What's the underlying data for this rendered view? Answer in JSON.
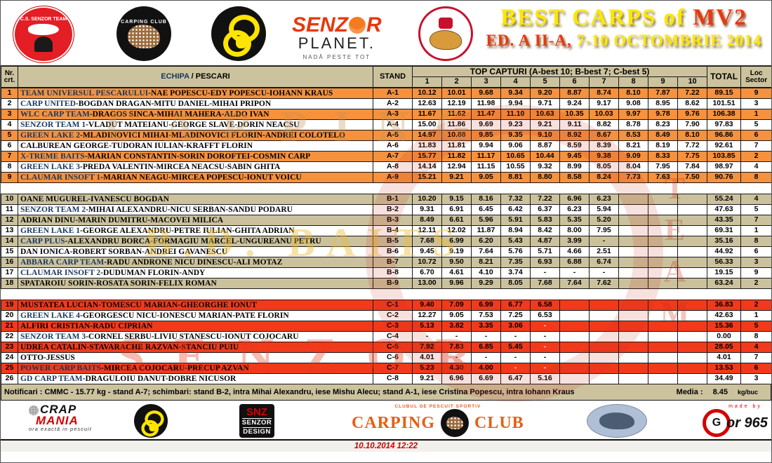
{
  "colors": {
    "orange_row": "#f6913e",
    "tan_row": "#cbc29d",
    "red_row": "#f23a1b",
    "header_bg": "#ccc39e",
    "team_navy": "#17375d",
    "title_yellow": "#ffe600",
    "title_red": "#e8380d"
  },
  "banner": {
    "title_main": "BEST CARPS of ",
    "title_accent": "MV2",
    "subtitle_accent": "ED. A II-A, ",
    "subtitle_main": "7-10 OCTOMBRIE 2014",
    "logos": {
      "senzor_team": "C.S. SENZOR TEAM",
      "carping_club": "CARPING CLUB",
      "senzor_planet_senz": "SENZ",
      "senzor_planet_r": "R",
      "senzor_planet_name": "PLANET.",
      "senzor_planet_tag": "NADĂ PESTE TOT"
    }
  },
  "table": {
    "nr_line1": "Nr.",
    "nr_line2": "crt.",
    "echipa_blue": "ECHIPA",
    "echipa_black": " / PESCARI",
    "stand": "STAND",
    "top_capturi": "TOP CAPTURI (A-best 10; B-best 7; C-best 5)",
    "num_cols": [
      "1",
      "2",
      "3",
      "4",
      "5",
      "6",
      "7",
      "8",
      "9",
      "10"
    ],
    "total": "TOTAL",
    "loc_line1": "Loc",
    "loc_line2": "Sector",
    "groups": [
      {
        "name": "A",
        "stripe": "#f6913e",
        "rows": [
          {
            "n": "1",
            "team": "TEAM UNIVERSUL PESCARULUI",
            "rest": "-NAE POPESCU-EDY POPESCU-IOHANN KRAUS",
            "stand": "A-1",
            "c": [
              "10.12",
              "10.01",
              "9.68",
              "9.34",
              "9.20",
              "8.87",
              "8.74",
              "8.10",
              "7.87",
              "7.22"
            ],
            "total": "89.15",
            "loc": "9"
          },
          {
            "n": "2",
            "team": "CARP UNITED",
            "rest": "-BOGDAN DRAGAN-MITU DANIEL-MIHAI PRIPON",
            "stand": "A-2",
            "c": [
              "12.63",
              "12.19",
              "11.98",
              "9.94",
              "9.71",
              "9.24",
              "9.17",
              "9.08",
              "8.95",
              "8.62"
            ],
            "total": "101.51",
            "loc": "3"
          },
          {
            "n": "3",
            "team": "WLC CARP TEAM",
            "rest": "-DRAGOS SINCA-MIHAI MAHERA-ALDO IVAN",
            "stand": "A-3",
            "c": [
              "11.67",
              "11.62",
              "11.47",
              "11.10",
              "10.63",
              "10.35",
              "10.03",
              "9.97",
              "9.78",
              "9.76"
            ],
            "total": "106.38",
            "loc": "1"
          },
          {
            "n": "4",
            "team": "SENZOR TEAM 1",
            "rest": "-VLADUT MATEIANU-GEORGE SLAVE-DORIN NEACSU",
            "stand": "A-4",
            "c": [
              "15.00",
              "11.86",
              "9.69",
              "9.23",
              "9.21",
              "9.11",
              "8.82",
              "8.78",
              "8.23",
              "7.90"
            ],
            "total": "97.83",
            "loc": "5"
          },
          {
            "n": "5",
            "team": "GREEN LAKE 2",
            "rest": "-MLADINOVICI MIHAI-MLADINOVICI FLORIN-ANDREI COLOTELO",
            "stand": "A-5",
            "c": [
              "14.97",
              "10.88",
              "9.85",
              "9.35",
              "9.10",
              "8.92",
              "8.67",
              "8.53",
              "8.49",
              "8.10"
            ],
            "total": "96.86",
            "loc": "6"
          },
          {
            "n": "6",
            "team": "",
            "rest": "CALBUREAN GEORGE-TUDORAN IULIAN-KRAFFT FLORIN",
            "stand": "A-6",
            "c": [
              "11.83",
              "11.81",
              "9.94",
              "9.06",
              "8.87",
              "8.59",
              "8.39",
              "8.21",
              "8.19",
              "7.72"
            ],
            "total": "92.61",
            "loc": "7"
          },
          {
            "n": "7",
            "team": "X-TREME BAITS",
            "rest": "-MARIAN CONSTANTIN-SORIN DOROFTEI-COSMIN CARP",
            "stand": "A-7",
            "c": [
              "15.77",
              "11.82",
              "11.17",
              "10.65",
              "10.44",
              "9.45",
              "9.38",
              "9.09",
              "8.33",
              "7.75"
            ],
            "total": "103.85",
            "loc": "2"
          },
          {
            "n": "8",
            "team": "GREEN LAKE 3",
            "rest": "-PREDA VALENTIN-MIRCEA NEACSU-SABIN GHITA",
            "stand": "A-8",
            "c": [
              "14.14",
              "12.94",
              "11.15",
              "10.55",
              "9.32",
              "8.99",
              "8.05",
              "8.04",
              "7.95",
              "7.84"
            ],
            "total": "98.97",
            "loc": "4"
          },
          {
            "n": "9",
            "team": "CLAUMAR INSOFT 1",
            "rest": "-MARIAN NEAGU-MIRCEA POPESCU-IONUT VOICU",
            "stand": "A-9",
            "c": [
              "15.21",
              "9.21",
              "9.05",
              "8.81",
              "8.80",
              "8.58",
              "8.24",
              "7.73",
              "7.63",
              "7.50"
            ],
            "total": "90.76",
            "loc": "8"
          }
        ]
      },
      {
        "name": "B",
        "stripe": "#cbc29d",
        "rows": [
          {
            "n": "10",
            "team": "",
            "rest": "OANE MUGUREL-IVANESCU BOGDAN",
            "stand": "B-1",
            "c": [
              "10.20",
              "9.15",
              "8.16",
              "7.32",
              "7.22",
              "6.96",
              "6.23",
              "",
              "",
              ""
            ],
            "total": "55.24",
            "loc": "4"
          },
          {
            "n": "11",
            "team": "SENZOR TEAM 2",
            "rest": "-MIHAI ALEXANDRU-NICU SERBAN-SANDU PODARU",
            "stand": "B-2",
            "c": [
              "9.31",
              "6.91",
              "6.45",
              "6.42",
              "6.37",
              "6.23",
              "5.94",
              "",
              "",
              ""
            ],
            "total": "47.63",
            "loc": "5"
          },
          {
            "n": "12",
            "team": "",
            "rest": "ADRIAN DINU-MARIN DUMITRU-MACOVEI  MILICA",
            "stand": "B-3",
            "c": [
              "8.49",
              "6.61",
              "5.96",
              "5.91",
              "5.83",
              "5.35",
              "5.20",
              "",
              "",
              ""
            ],
            "total": "43.35",
            "loc": "7"
          },
          {
            "n": "13",
            "team": "GREEN LAKE 1",
            "rest": "-GEORGE ALEXANDRU-PETRE IULIAN-GHITA ADRIAN",
            "stand": "B-4",
            "c": [
              "12.11",
              "12.02",
              "11.87",
              "8.94",
              "8.42",
              "8.00",
              "7.95",
              "",
              "",
              ""
            ],
            "total": "69.31",
            "loc": "1"
          },
          {
            "n": "14",
            "team": "CARP PLUS",
            "rest": "-ALEXANDRU BORCA-FORMAGIU MARCEL-UNGUREANU PETRU",
            "stand": "B-5",
            "c": [
              "7.68",
              "6.99",
              "6.20",
              "5.43",
              "4.87",
              "3.99",
              "-",
              "",
              "",
              ""
            ],
            "total": "35.16",
            "loc": "8"
          },
          {
            "n": "15",
            "team": "",
            "rest": "DAN IONICA-ROBERT SORBAN-ANDREI GAVANESCU",
            "stand": "B-6",
            "c": [
              "9.45",
              "9.19",
              "7.64",
              "5.76",
              "5.71",
              "4.66",
              "2.51",
              "",
              "",
              ""
            ],
            "total": "44.92",
            "loc": "6"
          },
          {
            "n": "16",
            "team": "ABBARA CARP TEAM",
            "rest": "-RADU ANDRONE NICU DINESCU-ALI MOTAZ",
            "stand": "B-7",
            "c": [
              "10.72",
              "9.50",
              "8.21",
              "7.35",
              "6.93",
              "6.88",
              "6.74",
              "",
              "",
              ""
            ],
            "total": "56.33",
            "loc": "3"
          },
          {
            "n": "17",
            "team": "CLAUMAR INSOFT 2",
            "rest": "-DUDUMAN FLORIN-ANDY",
            "stand": "B-8",
            "c": [
              "6.70",
              "4.61",
              "4.10",
              "3.74",
              "-",
              "-",
              "-",
              "",
              "",
              ""
            ],
            "total": "19.15",
            "loc": "9"
          },
          {
            "n": "18",
            "team": "",
            "rest": "SPATAROIU SORIN-ROSATA SORIN-FELIX ROMAN",
            "stand": "B-9",
            "c": [
              "13.00",
              "9.96",
              "9.29",
              "8.05",
              "7.68",
              "7.64",
              "7.62",
              "",
              "",
              ""
            ],
            "total": "63.24",
            "loc": "2"
          }
        ]
      },
      {
        "name": "C",
        "stripe": "#f23a1b",
        "rows": [
          {
            "n": "19",
            "team": "",
            "rest": "MUSTATEA LUCIAN-TOMESCU MARIAN-GHEORGHE IONUT",
            "stand": "C-1",
            "c": [
              "9.40",
              "7.09",
              "6.99",
              "6.77",
              "6.58",
              "",
              "",
              "",
              "",
              ""
            ],
            "total": "36.83",
            "loc": "2"
          },
          {
            "n": "20",
            "team": "GREEN LAKE 4",
            "rest": "-GEORGESCU NICU-IONESCU MARIAN-PATE FLORIN",
            "stand": "C-2",
            "c": [
              "12.27",
              "9.05",
              "7.53",
              "7.25",
              "6.53",
              "",
              "",
              "",
              "",
              ""
            ],
            "total": "42.63",
            "loc": "1"
          },
          {
            "n": "21",
            "team": "",
            "rest": "ALFIRI CRISTIAN-RADU CIPRIAN",
            "stand": "C-3",
            "c": [
              "5.13",
              "3.82",
              "3.35",
              "3.06",
              "-",
              "",
              "",
              "",
              "",
              ""
            ],
            "total": "15.36",
            "loc": "5"
          },
          {
            "n": "22",
            "team": "SENZOR TEAM 3",
            "rest": "-CORNEL SERBU-LIVIU STANESCU-IONUT COJOCARU",
            "stand": "C-4",
            "c": [
              "-",
              "-",
              "-",
              "-",
              "-",
              "",
              "",
              "",
              "",
              ""
            ],
            "total": "0.00",
            "loc": "8"
          },
          {
            "n": "23",
            "team": "",
            "rest": "UDREA CATALIN-STAVARACHE RAZVAN-STANCIU PUIU",
            "stand": "C-5",
            "c": [
              "7.92",
              "7.83",
              "6.85",
              "5.45",
              "-",
              "",
              "",
              "",
              "",
              ""
            ],
            "total": "28.05",
            "loc": "4"
          },
          {
            "n": "24",
            "team": "",
            "rest": "OTTO-JESSUS",
            "stand": "C-6",
            "c": [
              "4.01",
              "-",
              "-",
              "-",
              "-",
              "",
              "",
              "",
              "",
              ""
            ],
            "total": "4.01",
            "loc": "7"
          },
          {
            "n": "25",
            "team": "POWER CARP BAITS",
            "rest": "-MIRCEA COJOCARU-PRECUP AZVAN",
            "stand": "C-7",
            "c": [
              "5.23",
              "4.30",
              "4.00",
              "-",
              "-",
              "",
              "",
              "",
              "",
              ""
            ],
            "total": "13.53",
            "loc": "6"
          },
          {
            "n": "26",
            "team": "GD CARP TEAM",
            "rest": "-DRAGULOIU DANUT-DOBRE NICUSOR",
            "stand": "C-8",
            "c": [
              "9.21",
              "6.96",
              "6.69",
              "6.47",
              "5.16",
              "",
              "",
              "",
              "",
              ""
            ],
            "total": "34.49",
            "loc": "3"
          }
        ]
      }
    ]
  },
  "watermarks": {
    "a": "CARPING",
    "b": "B.D. BAITS",
    "c": "SENZOR",
    "vertical": "TEAM"
  },
  "footer": {
    "notifications": "Notificari : CMMC -  15.77 kg - stand A-7;   schimbari: stand B-2, intra Mihai Alexandru, iese Mishu Alecu; stand A-1, iese Cristina Popescu, intra Iohann Kraus",
    "media_label": "Media :",
    "media_value": "8.45",
    "media_unit": "kg/buc"
  },
  "sponsors": {
    "crap": "CRAP",
    "mania": "MANIA",
    "crap_tag": "ora exactă in pescuit",
    "snz": "SNZ",
    "snz_l2": "SENZOR",
    "snz_l3": "DESIGN",
    "club_small": "CLUBUL DE PESCUIT SPORTIV",
    "club_left": "CARPING",
    "club_right": "CLUB",
    "made_by": "made by",
    "gor_g": "G",
    "gor_txt": "or 965"
  },
  "timestamp": "10.10.2014 12:22"
}
